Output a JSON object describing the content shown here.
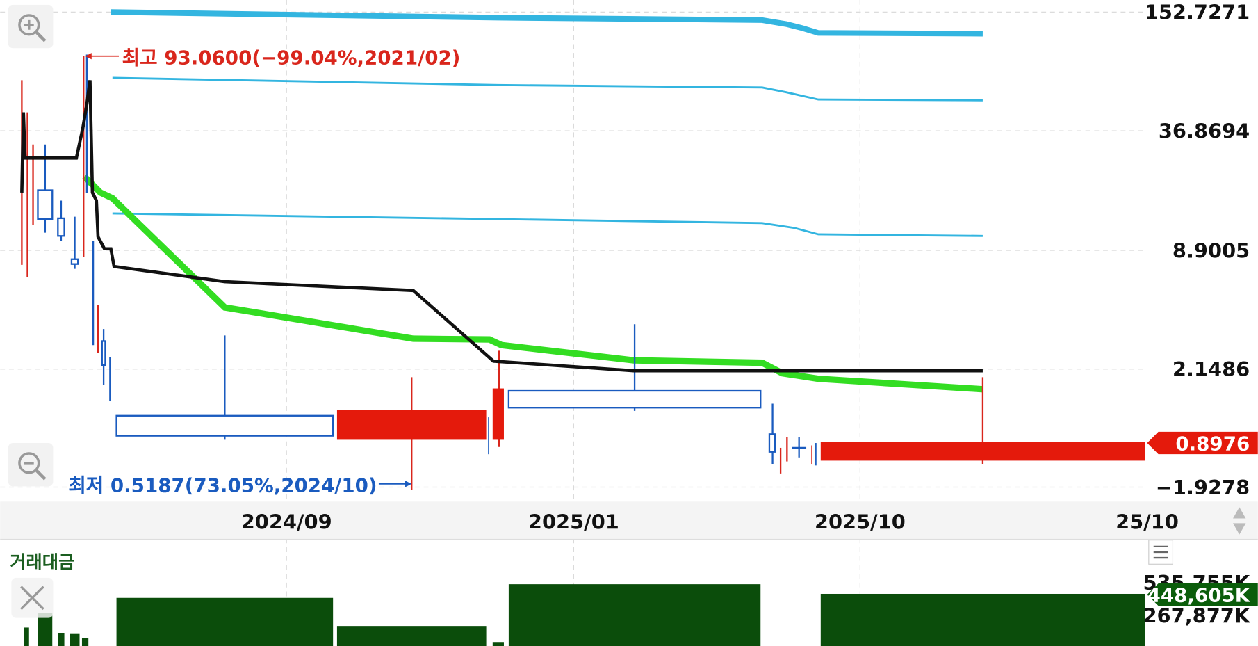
{
  "annotations": {
    "high": "최고 93.0600(−99.04%,2021/02)",
    "low": "최저 0.5187(73.05%,2024/10)"
  },
  "price_axis": {
    "labels": [
      "152.7271",
      "36.8694",
      "8.9005",
      "2.1486",
      "−1.9278"
    ],
    "current": "0.8976"
  },
  "time_axis": {
    "labels": [
      "2024/09",
      "2025/01",
      "2025/10",
      "25/10"
    ]
  },
  "volume_panel": {
    "title": "거래대금",
    "labels": [
      "535,755K",
      "267,877K"
    ],
    "current": "448,605K"
  }
}
